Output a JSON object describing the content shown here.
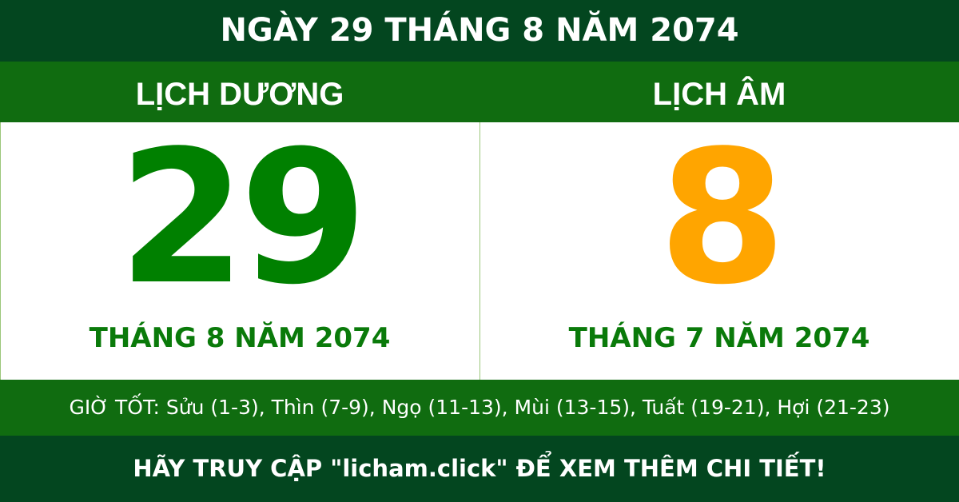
{
  "title": "NGÀY 29 THÁNG 8 NĂM 2074",
  "solar": {
    "label": "LỊCH DƯƠNG",
    "day": "29",
    "month_year": "THÁNG 8 NĂM 2074"
  },
  "lunar": {
    "label": "LỊCH ÂM",
    "day": "8",
    "month_year": "THÁNG 7 NĂM 2074"
  },
  "good_hours": "GIỜ TỐT: Sửu (1-3), Thìn (7-9), Ngọ (11-13), Mùi (13-15), Tuất (19-21), Hợi (21-23)",
  "footer": "HÃY TRUY CẬP \"licham.click\" ĐỂ XEM THÊM CHI TIẾT!",
  "colors": {
    "dark_green": "#03461f",
    "green": "#106c10",
    "solar_day": "#008000",
    "lunar_day": "#ffa500"
  }
}
